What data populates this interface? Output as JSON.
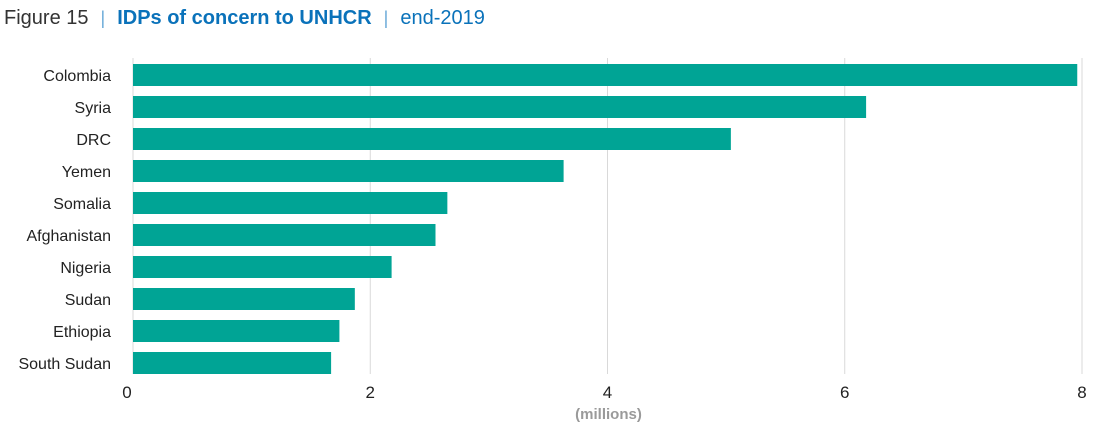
{
  "header": {
    "figure_label": "Figure 15",
    "separator": "|",
    "title": "IDPs of concern to UNHCR",
    "subtitle": "end-2019"
  },
  "colors": {
    "bar": "#00a495",
    "grid": "#d9d9d9",
    "title": "#0a72ba"
  },
  "chart_data": {
    "type": "bar",
    "orientation": "horizontal",
    "title": "IDPs of concern to UNHCR",
    "subtitle": "end-2019",
    "categories": [
      "Colombia",
      "Syria",
      "DRC",
      "Yemen",
      "Somalia",
      "Afghanistan",
      "Nigeria",
      "Sudan",
      "Ethiopia",
      "South Sudan"
    ],
    "values": [
      7.96,
      6.18,
      5.04,
      3.63,
      2.65,
      2.55,
      2.18,
      1.87,
      1.74,
      1.67
    ],
    "xlabel": "(millions)",
    "ylabel": "",
    "xlim": [
      0,
      8
    ],
    "xticks": [
      0,
      2,
      4,
      6,
      8
    ],
    "xtick_labels": [
      "0",
      "2",
      "4",
      "6",
      "8"
    ],
    "grid": true,
    "legend": "none"
  }
}
